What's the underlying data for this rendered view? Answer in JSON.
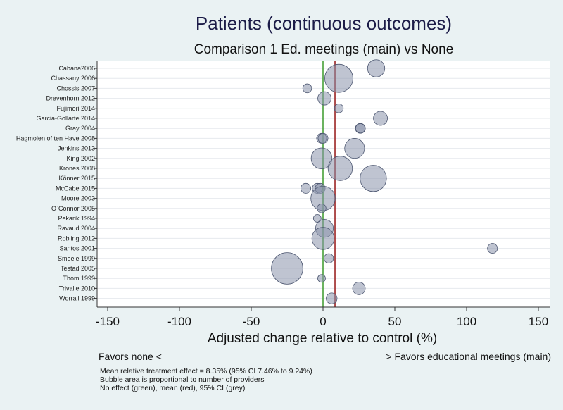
{
  "chart_data": {
    "type": "bubble",
    "title": "Patients (continuous outcomes)",
    "subtitle": "Comparison 1 Ed. meetings (main) vs None",
    "xlabel": "Adjusted change relative to control (%)",
    "xlim": [
      -160,
      155
    ],
    "xticks": [
      -150,
      -100,
      -50,
      0,
      50,
      100,
      150
    ],
    "xtick_labels": [
      "-150",
      "-100",
      "-50",
      "0",
      "50",
      "100",
      "150"
    ],
    "no_effect": 0,
    "mean": 8.35,
    "ci": [
      7.46,
      9.24
    ],
    "studies": [
      "Cabana2006",
      "Chassany 2006",
      "Chossis 2007",
      "Drevenhorn 2012",
      "Fujimori 2014",
      "Garcia-Gollarte 2014",
      "Gray 2004",
      "Hagmolen of ten Have 2008",
      "Jenkins 2013",
      "King 2002",
      "Krones 2008",
      "Könner 2015",
      "McCabe 2015",
      "Moore 2003",
      "O`Connor 2005",
      "Pekarik 1994",
      "Ravaud 2004",
      "Robling 2012",
      "Santos 2001",
      "Smeele 1999",
      "Testad 2005",
      "Thom 1999",
      "Trivalle 2010",
      "Worrall 1999"
    ],
    "points": [
      {
        "study": 0,
        "x": 37,
        "size": 1.5
      },
      {
        "study": 1,
        "x": 11,
        "size": 4.0
      },
      {
        "study": 2,
        "x": -11,
        "size": 0.4
      },
      {
        "study": 3,
        "x": 1,
        "size": 0.9
      },
      {
        "study": 4,
        "x": 11,
        "size": 0.4
      },
      {
        "study": 5,
        "x": 40,
        "size": 1.0
      },
      {
        "study": 6,
        "x": 26,
        "size": 0.5
      },
      {
        "study": 6,
        "x": 26,
        "size": 0.45
      },
      {
        "study": 7,
        "x": -1,
        "size": 0.5
      },
      {
        "study": 7,
        "x": 0,
        "size": 0.5
      },
      {
        "study": 8,
        "x": 22,
        "size": 2.0
      },
      {
        "study": 9,
        "x": -1,
        "size": 2.2
      },
      {
        "study": 10,
        "x": 12,
        "size": 3.0
      },
      {
        "study": 11,
        "x": 35,
        "size": 3.5
      },
      {
        "study": 12,
        "x": -12,
        "size": 0.5
      },
      {
        "study": 12,
        "x": -4,
        "size": 0.5
      },
      {
        "study": 12,
        "x": -2,
        "size": 0.5
      },
      {
        "study": 13,
        "x": 0,
        "size": 3.0
      },
      {
        "study": 14,
        "x": -1,
        "size": 0.4
      },
      {
        "study": 15,
        "x": -4,
        "size": 0.3
      },
      {
        "study": 16,
        "x": 1,
        "size": 1.6
      },
      {
        "study": 17,
        "x": 0,
        "size": 2.5
      },
      {
        "study": 18,
        "x": 118,
        "size": 0.5
      },
      {
        "study": 19,
        "x": 4,
        "size": 0.45
      },
      {
        "study": 20,
        "x": -25,
        "size": 5.0
      },
      {
        "study": 21,
        "x": -1,
        "size": 0.3
      },
      {
        "study": 22,
        "x": 25,
        "size": 0.8
      },
      {
        "study": 23,
        "x": 6,
        "size": 0.6
      }
    ]
  },
  "footer": {
    "favors_left": "Favors none <",
    "favors_right": "> Favors educational meetings (main)",
    "notes": [
      "Mean relative treatment effect =  8.35% (95% CI  7.46% to  9.24%)",
      "Bubble area is proportional to number of providers",
      "No effect (green), mean (red), 95% CI (grey)"
    ]
  },
  "colors": {
    "no_effect_line": "#3a9a2a",
    "mean_line": "#b03030",
    "ci_band": "#8a8a8a",
    "bubble_fill": "#8a94ac",
    "background": "#eaf2f3",
    "plot_bg": "#ffffff"
  }
}
